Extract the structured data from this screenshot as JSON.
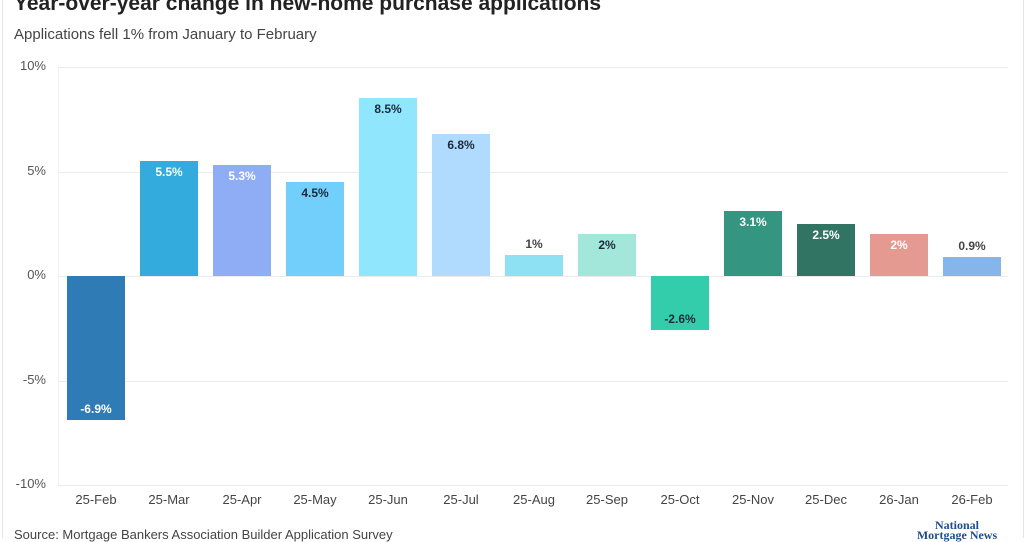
{
  "header": {
    "title": "Year-over-year change in new-home purchase applications",
    "subtitle": "Applications fell 1% from January to February"
  },
  "footer": {
    "source": "Source: Mortgage Bankers Association Builder Application Survey",
    "logo_line1": "National",
    "logo_line2": "Mortgage News"
  },
  "axis": {
    "y_ticks": [
      "10%",
      "5%",
      "0%",
      "-5%",
      "-10%"
    ]
  },
  "chart_data": {
    "type": "bar",
    "title": "Year-over-year change in new-home purchase applications",
    "subtitle": "Applications fell 1% from January to February",
    "xlabel": "",
    "ylabel": "",
    "ylim": [
      -10,
      10
    ],
    "y_ticks": [
      10,
      5,
      0,
      -5,
      -10
    ],
    "grid": true,
    "legend": "none",
    "categories": [
      "25-Feb",
      "25-Mar",
      "25-Apr",
      "25-May",
      "25-Jun",
      "25-Jul",
      "25-Aug",
      "25-Sep",
      "25-Oct",
      "25-Nov",
      "25-Dec",
      "26-Jan",
      "26-Feb"
    ],
    "values": [
      -6.9,
      5.5,
      5.3,
      4.5,
      8.5,
      6.8,
      1,
      2,
      -2.6,
      3.1,
      2.5,
      2,
      0.9
    ],
    "labels": [
      "-6.9%",
      "5.5%",
      "5.3%",
      "4.5%",
      "8.5%",
      "6.8%",
      "1%",
      "2%",
      "-2.6%",
      "3.1%",
      "2.5%",
      "2%",
      "0.9%"
    ],
    "colors": [
      "#2f7bb5",
      "#33abdc",
      "#8eadf5",
      "#72cffc",
      "#8fe6fd",
      "#b1daff",
      "#8ee1f2",
      "#a3e6da",
      "#34cdab",
      "#349680",
      "#327464",
      "#e49a90",
      "#86b5ea"
    ],
    "label_colors": [
      "#ffffff",
      "#ffffff",
      "#ffffff",
      "#1a2a3a",
      "#1a2a3a",
      "#1a2a3a",
      "#444444",
      "#1a2a3a",
      "#1a2a3a",
      "#ffffff",
      "#ffffff",
      "#ffffff",
      "#444444"
    ],
    "label_outside": [
      false,
      false,
      false,
      false,
      false,
      false,
      true,
      false,
      false,
      false,
      false,
      false,
      true
    ],
    "source": "Source: Mortgage Bankers Association Builder Application Survey"
  }
}
